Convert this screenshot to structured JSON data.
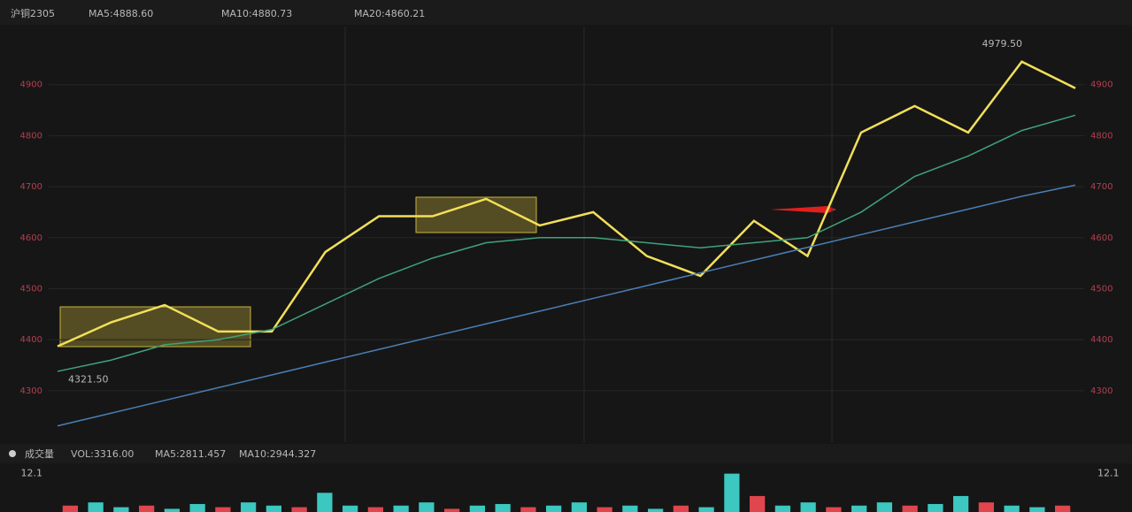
{
  "chart_data": [
    {
      "type": "line",
      "title": "沪铜2305",
      "categories": [
        null,
        null,
        null,
        null,
        null,
        null,
        null,
        null,
        null,
        null,
        null,
        null,
        null,
        null,
        null,
        null,
        null,
        null,
        null,
        null
      ],
      "series": [
        {
          "name": "MA5:4888.60",
          "color": "#f2df5a",
          "values": [
            4387,
            4434,
            4468,
            4416,
            4416,
            4572,
            4642,
            4642,
            4676,
            4624,
            4650,
            4564,
            4525,
            4633,
            4564,
            4806,
            4858,
            4806,
            4945,
            4893
          ]
        },
        {
          "name": "MA10:4880.73",
          "color": "#3fa37a",
          "values": [
            4338,
            4360,
            4390,
            4400,
            4420,
            4470,
            4520,
            4560,
            4590,
            4600,
            4600,
            4590,
            4580,
            4590,
            4600,
            4650,
            4720,
            4760,
            4810,
            4840
          ]
        },
        {
          "name": "MA20:4860.21",
          "color": "#4a7fb5",
          "values": [
            4231,
            4256,
            4281,
            4306,
            4331,
            4356,
            4381,
            4406,
            4431,
            4456,
            4481,
            4506,
            4531,
            4556,
            4581,
            4606,
            4631,
            4656,
            4681,
            4703
          ]
        }
      ],
      "ylim": [
        4220,
        5000
      ],
      "yticks": [
        4300,
        4400,
        4500,
        4600,
        4700,
        4800,
        4900
      ],
      "grid": true,
      "annotations": [
        {
          "text": "4979.50",
          "index": 18,
          "value": 4979.5
        },
        {
          "text": "4321.50",
          "index": 0,
          "value": 4321.5
        }
      ]
    },
    {
      "type": "bar",
      "title": "成交量",
      "categories": [
        null,
        null,
        null,
        null,
        null,
        null,
        null,
        null,
        null,
        null,
        null,
        null,
        null,
        null,
        null,
        null,
        null,
        null,
        null,
        null,
        null,
        null,
        null,
        null,
        null,
        null,
        null,
        null,
        null,
        null,
        null,
        null,
        null,
        null,
        null,
        null,
        null,
        null,
        null,
        null
      ],
      "series": [
        {
          "name": "VOL:3316.00",
          "color": "#3cc7c0",
          "values": [
            2,
            3,
            1.5,
            2,
            1,
            2.5,
            1.5,
            3,
            2,
            1.5,
            6,
            2,
            1.5,
            2,
            3,
            1,
            2,
            2.5,
            1.5,
            2,
            3,
            1.5,
            2,
            1,
            2,
            1.5,
            12,
            5,
            2,
            3,
            1.5,
            2,
            3,
            2,
            2.5,
            5,
            3,
            2,
            1.5,
            2
          ]
        }
      ],
      "labels": [
        "MA5:2811.457",
        "MA10:2944.327"
      ],
      "ylim": [
        0,
        13
      ],
      "yticks": [
        12.1
      ]
    }
  ]
}
